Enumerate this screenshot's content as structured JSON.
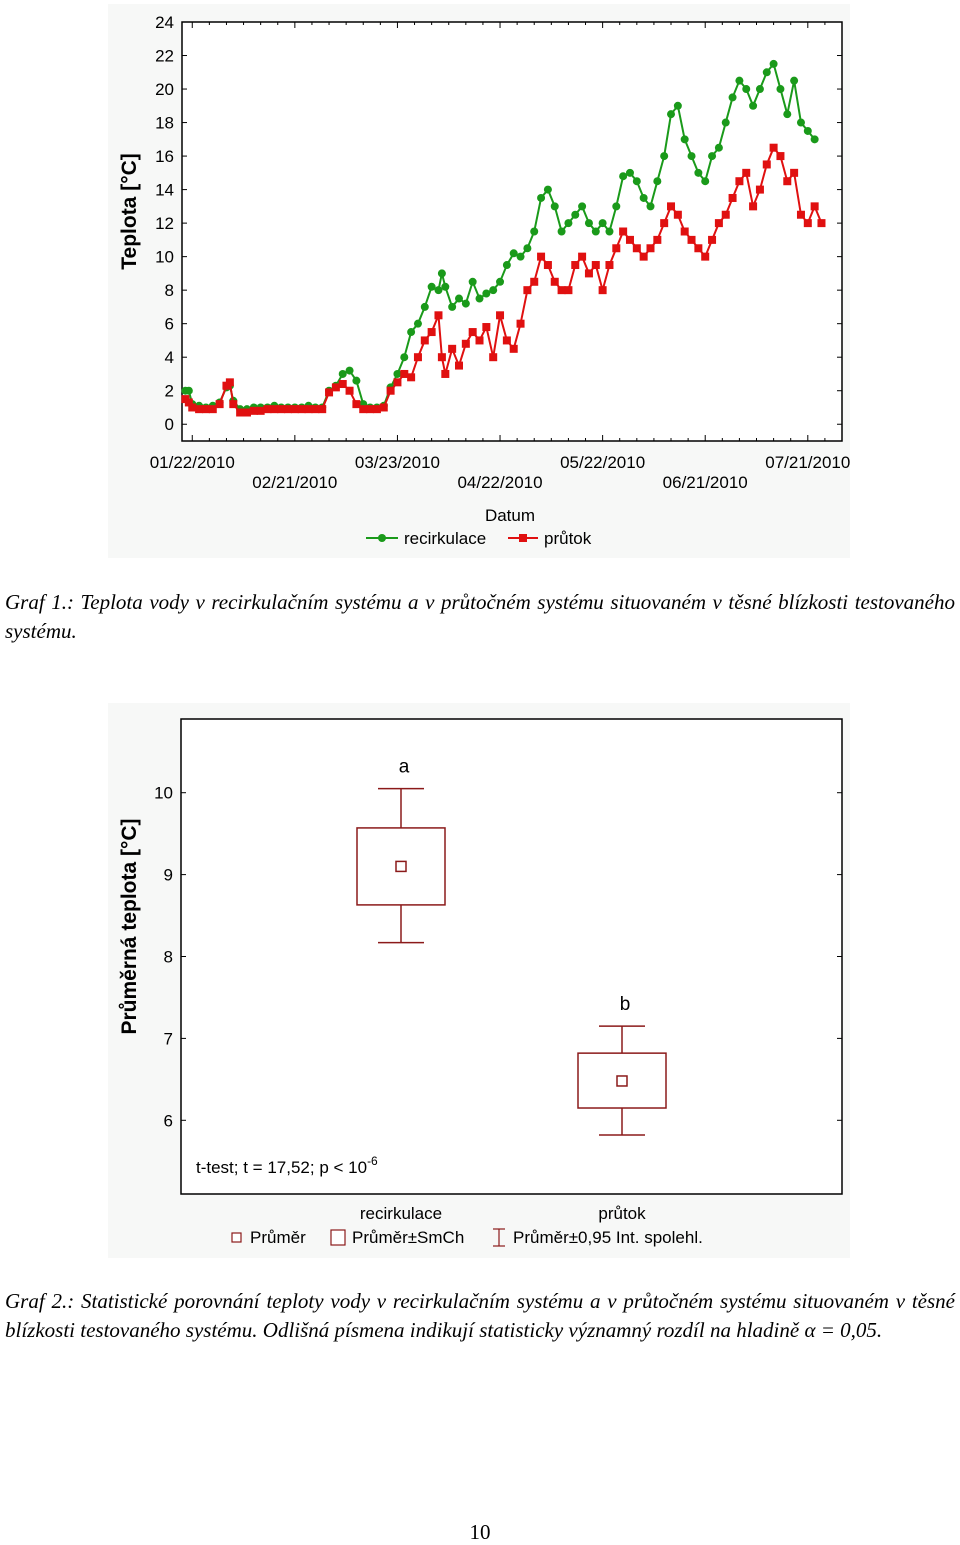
{
  "captions": {
    "graf1": "Graf 1.: Teplota vody v recirkulačním systému a v průtočném systému situovaném v těsné blízkosti testovaného systému.",
    "graf2": "Graf 2.: Statistické porovnání teploty vody v recirkulačním systému a v průtočném systému situovaném v těsné blízkosti testovaného systému. Odlišná písmena indikují statisticky významný rozdíl na hladině α = 0,05."
  },
  "page_number": "10",
  "chart_data": [
    {
      "type": "line",
      "ylabel": "Teplota [°C]",
      "xlabel": "Datum",
      "ylim": [
        -1,
        24
      ],
      "yticks": [
        0,
        2,
        4,
        6,
        8,
        10,
        12,
        14,
        16,
        18,
        20,
        22,
        24
      ],
      "x_tick_labels_row1": [
        "01/22/2010",
        "03/23/2010",
        "05/22/2010",
        "07/21/2010"
      ],
      "x_tick_labels_row2": [
        "02/21/2010",
        "04/22/2010",
        "06/21/2010"
      ],
      "x_tick_day_offsets": [
        0,
        30,
        60,
        90,
        120,
        150,
        180
      ],
      "xlim_days": [
        -3,
        190
      ],
      "legend_position": "bottom",
      "grid": false,
      "series": [
        {
          "name": "recirkulace",
          "color": "#1a9a1a",
          "marker": "circle",
          "points": [
            [
              -2,
              2.0
            ],
            [
              -1,
              2.0
            ],
            [
              0,
              1.2
            ],
            [
              2,
              1.1
            ],
            [
              4,
              1.0
            ],
            [
              6,
              1.1
            ],
            [
              8,
              1.3
            ],
            [
              10,
              2.2
            ],
            [
              11,
              2.3
            ],
            [
              12,
              1.4
            ],
            [
              14,
              0.9
            ],
            [
              16,
              0.9
            ],
            [
              18,
              1.0
            ],
            [
              20,
              1.0
            ],
            [
              22,
              1.0
            ],
            [
              24,
              1.1
            ],
            [
              26,
              1.0
            ],
            [
              28,
              1.0
            ],
            [
              30,
              1.0
            ],
            [
              32,
              1.0
            ],
            [
              34,
              1.1
            ],
            [
              36,
              1.0
            ],
            [
              38,
              1.0
            ],
            [
              40,
              2.0
            ],
            [
              42,
              2.3
            ],
            [
              44,
              3.0
            ],
            [
              46,
              3.2
            ],
            [
              48,
              2.6
            ],
            [
              50,
              1.2
            ],
            [
              52,
              1.0
            ],
            [
              54,
              1.0
            ],
            [
              56,
              1.1
            ],
            [
              58,
              2.2
            ],
            [
              60,
              3.0
            ],
            [
              62,
              4.0
            ],
            [
              64,
              5.5
            ],
            [
              66,
              6.0
            ],
            [
              68,
              7.0
            ],
            [
              70,
              8.2
            ],
            [
              72,
              8.0
            ],
            [
              73,
              9.0
            ],
            [
              74,
              8.2
            ],
            [
              76,
              7.0
            ],
            [
              78,
              7.5
            ],
            [
              80,
              7.2
            ],
            [
              82,
              8.5
            ],
            [
              84,
              7.5
            ],
            [
              86,
              7.8
            ],
            [
              88,
              8.0
            ],
            [
              90,
              8.5
            ],
            [
              92,
              9.5
            ],
            [
              94,
              10.2
            ],
            [
              96,
              10.0
            ],
            [
              98,
              10.5
            ],
            [
              100,
              11.5
            ],
            [
              102,
              13.5
            ],
            [
              104,
              14.0
            ],
            [
              106,
              13.0
            ],
            [
              108,
              11.5
            ],
            [
              110,
              12.0
            ],
            [
              112,
              12.5
            ],
            [
              114,
              13.0
            ],
            [
              116,
              12.0
            ],
            [
              118,
              11.5
            ],
            [
              120,
              12.0
            ],
            [
              122,
              11.5
            ],
            [
              124,
              13.0
            ],
            [
              126,
              14.8
            ],
            [
              128,
              15.0
            ],
            [
              130,
              14.5
            ],
            [
              132,
              13.5
            ],
            [
              134,
              13.0
            ],
            [
              136,
              14.5
            ],
            [
              138,
              16.0
            ],
            [
              140,
              18.5
            ],
            [
              142,
              19.0
            ],
            [
              144,
              17.0
            ],
            [
              146,
              16.0
            ],
            [
              148,
              15.0
            ],
            [
              150,
              14.5
            ],
            [
              152,
              16.0
            ],
            [
              154,
              16.5
            ],
            [
              156,
              18.0
            ],
            [
              158,
              19.5
            ],
            [
              160,
              20.5
            ],
            [
              162,
              20.0
            ],
            [
              164,
              19.0
            ],
            [
              166,
              20.0
            ],
            [
              168,
              21.0
            ],
            [
              170,
              21.5
            ],
            [
              172,
              20.0
            ],
            [
              174,
              18.5
            ],
            [
              176,
              20.5
            ],
            [
              178,
              18.0
            ],
            [
              180,
              17.5
            ],
            [
              182,
              17.0
            ]
          ]
        },
        {
          "name": "průtok",
          "color": "#e01010",
          "marker": "square",
          "points": [
            [
              -2,
              1.5
            ],
            [
              -1,
              1.3
            ],
            [
              0,
              1.0
            ],
            [
              2,
              0.9
            ],
            [
              4,
              0.9
            ],
            [
              6,
              0.9
            ],
            [
              8,
              1.2
            ],
            [
              10,
              2.3
            ],
            [
              11,
              2.5
            ],
            [
              12,
              1.2
            ],
            [
              14,
              0.7
            ],
            [
              16,
              0.7
            ],
            [
              18,
              0.8
            ],
            [
              20,
              0.8
            ],
            [
              22,
              0.9
            ],
            [
              24,
              0.9
            ],
            [
              26,
              0.9
            ],
            [
              28,
              0.9
            ],
            [
              30,
              0.9
            ],
            [
              32,
              0.9
            ],
            [
              34,
              0.9
            ],
            [
              36,
              0.9
            ],
            [
              38,
              0.9
            ],
            [
              40,
              1.9
            ],
            [
              42,
              2.2
            ],
            [
              44,
              2.4
            ],
            [
              46,
              2.0
            ],
            [
              48,
              1.2
            ],
            [
              50,
              0.9
            ],
            [
              52,
              0.9
            ],
            [
              54,
              0.9
            ],
            [
              56,
              1.0
            ],
            [
              58,
              2.0
            ],
            [
              60,
              2.5
            ],
            [
              62,
              3.0
            ],
            [
              64,
              2.8
            ],
            [
              66,
              4.0
            ],
            [
              68,
              5.0
            ],
            [
              70,
              5.5
            ],
            [
              72,
              6.5
            ],
            [
              73,
              4.0
            ],
            [
              74,
              3.0
            ],
            [
              76,
              4.5
            ],
            [
              78,
              3.5
            ],
            [
              80,
              4.8
            ],
            [
              82,
              5.5
            ],
            [
              84,
              5.0
            ],
            [
              86,
              5.8
            ],
            [
              88,
              4.0
            ],
            [
              90,
              6.5
            ],
            [
              92,
              5.0
            ],
            [
              94,
              4.5
            ],
            [
              96,
              6.0
            ],
            [
              98,
              8.0
            ],
            [
              100,
              8.5
            ],
            [
              102,
              10.0
            ],
            [
              104,
              9.5
            ],
            [
              106,
              8.5
            ],
            [
              108,
              8.0
            ],
            [
              110,
              8.0
            ],
            [
              112,
              9.5
            ],
            [
              114,
              10.0
            ],
            [
              116,
              9.0
            ],
            [
              118,
              9.5
            ],
            [
              120,
              8.0
            ],
            [
              122,
              9.5
            ],
            [
              124,
              10.5
            ],
            [
              126,
              11.5
            ],
            [
              128,
              11.0
            ],
            [
              130,
              10.5
            ],
            [
              132,
              10.0
            ],
            [
              134,
              10.5
            ],
            [
              136,
              11.0
            ],
            [
              138,
              12.0
            ],
            [
              140,
              13.0
            ],
            [
              142,
              12.5
            ],
            [
              144,
              11.5
            ],
            [
              146,
              11.0
            ],
            [
              148,
              10.5
            ],
            [
              150,
              10.0
            ],
            [
              152,
              11.0
            ],
            [
              154,
              12.0
            ],
            [
              156,
              12.5
            ],
            [
              158,
              13.5
            ],
            [
              160,
              14.5
            ],
            [
              162,
              15.0
            ],
            [
              164,
              13.0
            ],
            [
              166,
              14.0
            ],
            [
              168,
              15.5
            ],
            [
              170,
              16.5
            ],
            [
              172,
              16.0
            ],
            [
              174,
              14.5
            ],
            [
              176,
              15.0
            ],
            [
              178,
              12.5
            ],
            [
              180,
              12.0
            ],
            [
              182,
              13.0
            ],
            [
              184,
              12.0
            ]
          ]
        }
      ]
    },
    {
      "type": "box",
      "ylabel": "Průměrná teplota [°C]",
      "ylim": [
        5.1,
        10.9
      ],
      "yticks": [
        6,
        7,
        8,
        9,
        10
      ],
      "categories": [
        "recirkulace",
        "průtok"
      ],
      "grid": false,
      "color": "#8b1a1a",
      "annotation": "t-test; t = 17,52; p < 10",
      "annotation_exponent": "-6",
      "legend_position": "bottom",
      "legend": [
        "Průměr",
        "Průměr±SmCh",
        "Průměr±0,95 Int. spolehl."
      ],
      "groups": [
        {
          "label": "recirkulace",
          "letter": "a",
          "mean": 9.1,
          "se_low": 8.63,
          "se_high": 9.57,
          "ci_low": 8.17,
          "ci_high": 10.05
        },
        {
          "label": "průtok",
          "letter": "b",
          "mean": 6.48,
          "se_low": 6.15,
          "se_high": 6.82,
          "ci_low": 5.82,
          "ci_high": 7.15
        }
      ]
    }
  ]
}
